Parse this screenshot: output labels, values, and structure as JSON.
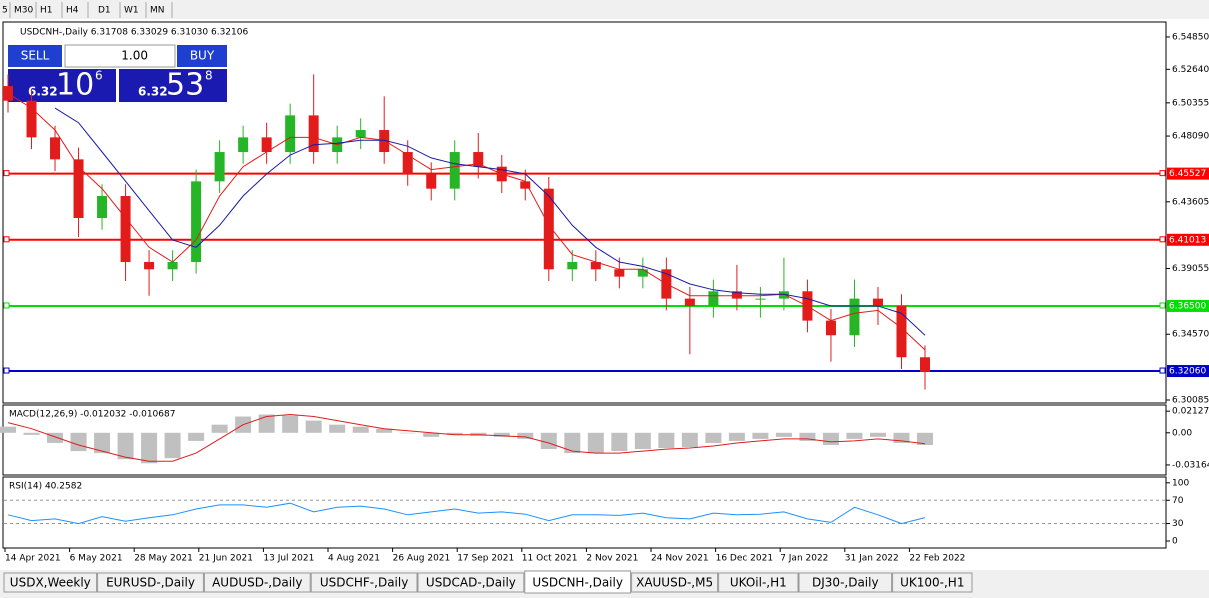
{
  "toolbar": {
    "timeframes": [
      "5",
      "M30",
      "H1",
      "H4",
      "D1",
      "W1",
      "MN"
    ]
  },
  "trade_panel": {
    "sell": "SELL",
    "buy": "BUY",
    "lot": "1.00",
    "sell_prefix": "6.32",
    "sell_big": "10",
    "sell_sup": "6",
    "buy_prefix": "6.32",
    "buy_big": "53",
    "buy_sup": "8"
  },
  "tabs": [
    "USDX,Weekly",
    "EURUSD-,Daily",
    "AUDUSD-,Daily",
    "USDCHF-,Daily",
    "USDCAD-,Daily",
    "USDCNH-,Daily",
    "XAUUSD-,M5",
    "UKOil-,H1",
    "DJ30-,Daily",
    "UK100-,H1"
  ],
  "active_tab": "USDCNH-,Daily",
  "chart_data": [
    {
      "type": "candlestick",
      "title": "USDCNH-,Daily  6.31708 6.33029 6.31030 6.32106",
      "up_color": "#26b526",
      "down_color": "#e21b1b",
      "open": [
        6.515,
        6.505,
        6.48,
        6.465,
        6.425,
        6.44,
        6.395,
        6.39,
        6.395,
        6.45,
        6.47,
        6.48,
        6.47,
        6.495,
        6.47,
        6.48,
        6.485,
        6.47,
        6.455,
        6.445,
        6.47,
        6.46,
        6.45,
        6.445,
        6.39,
        6.395,
        6.39,
        6.385,
        6.39,
        6.37,
        6.365,
        6.375,
        6.37,
        6.37,
        6.375,
        6.355,
        6.345,
        6.37,
        6.365,
        6.33
      ],
      "high": [
        6.523,
        6.513,
        6.488,
        6.473,
        6.448,
        6.448,
        6.403,
        6.403,
        6.458,
        6.478,
        6.488,
        6.49,
        6.503,
        6.523,
        6.488,
        6.493,
        6.508,
        6.478,
        6.463,
        6.478,
        6.483,
        6.468,
        6.458,
        6.453,
        6.403,
        6.403,
        6.398,
        6.398,
        6.398,
        6.378,
        6.383,
        6.393,
        6.378,
        6.398,
        6.383,
        6.363,
        6.383,
        6.378,
        6.373,
        6.338
      ],
      "low": [
        6.497,
        6.472,
        6.457,
        6.412,
        6.417,
        6.382,
        6.372,
        6.382,
        6.387,
        6.442,
        6.462,
        6.462,
        6.462,
        6.462,
        6.462,
        6.472,
        6.462,
        6.447,
        6.437,
        6.437,
        6.452,
        6.442,
        6.437,
        6.382,
        6.382,
        6.382,
        6.377,
        6.377,
        6.362,
        6.332,
        6.357,
        6.362,
        6.357,
        6.362,
        6.347,
        6.327,
        6.337,
        6.352,
        6.322,
        6.308
      ],
      "close": [
        6.505,
        6.48,
        6.465,
        6.425,
        6.44,
        6.395,
        6.39,
        6.395,
        6.45,
        6.47,
        6.48,
        6.47,
        6.495,
        6.47,
        6.48,
        6.485,
        6.47,
        6.455,
        6.445,
        6.47,
        6.46,
        6.45,
        6.445,
        6.39,
        6.395,
        6.39,
        6.385,
        6.39,
        6.37,
        6.365,
        6.375,
        6.37,
        6.37,
        6.375,
        6.355,
        6.345,
        6.37,
        6.365,
        6.33,
        6.32
      ],
      "series": [
        {
          "color": "#e21b1b",
          "values": [
            6.51,
            6.5,
            6.485,
            6.46,
            6.445,
            6.425,
            6.405,
            6.395,
            6.41,
            6.44,
            6.46,
            6.47,
            6.48,
            6.48,
            6.475,
            6.48,
            6.478,
            6.468,
            6.458,
            6.46,
            6.462,
            6.455,
            6.45,
            6.42,
            6.4,
            6.395,
            6.39,
            6.39,
            6.38,
            6.372,
            6.372,
            6.372,
            6.372,
            6.373,
            6.365,
            6.355,
            6.36,
            6.362,
            6.35,
            6.335
          ]
        },
        {
          "color": "#1a1aa6",
          "values": [
            null,
            null,
            6.5,
            6.49,
            6.47,
            6.45,
            6.43,
            6.41,
            6.405,
            6.42,
            6.44,
            6.455,
            6.468,
            6.475,
            6.476,
            6.478,
            6.478,
            6.474,
            6.466,
            6.462,
            6.46,
            6.458,
            6.455,
            6.44,
            6.42,
            6.405,
            6.395,
            6.392,
            6.387,
            6.38,
            6.376,
            6.374,
            6.373,
            6.373,
            6.37,
            6.365,
            6.365,
            6.365,
            6.36,
            6.345
          ]
        }
      ],
      "levels": [
        {
          "value": 6.45527,
          "color": "#ff0000"
        },
        {
          "value": 6.41013,
          "color": "#ff0000"
        },
        {
          "value": 6.365,
          "label": "6.36500",
          "color": "#00e000"
        },
        {
          "value": 6.3206,
          "label": "6.32060",
          "color": "#0000c8"
        }
      ],
      "ylim": [
        6.2988,
        6.5587
      ],
      "yticks": [
        6.30085,
        {
          "value": 6.3457,
          "label": "6.34570"
        },
        6.39055,
        6.43605,
        {
          "value": 6.4809,
          "label": "6.48090"
        },
        6.50355,
        {
          "value": 6.5264,
          "label": "6.52640"
        },
        {
          "value": 6.5485,
          "label": "6.54850"
        }
      ],
      "xtick_labels": [
        "14 Apr 2021",
        "6 May 2021",
        "28 May 2021",
        "21 Jun 2021",
        "13 Jul 2021",
        "4 Aug 2021",
        "26 Aug 2021",
        "17 Sep 2021",
        "11 Oct 2021",
        "2 Nov 2021",
        "24 Nov 2021",
        "16 Dec 2021",
        "7 Jan 2022",
        "31 Jan 2022",
        "22 Feb 2022"
      ]
    },
    {
      "type": "macd",
      "title": "MACD(12,26,9) -0.012032 -0.010687",
      "color": "#c0c0c0",
      "values": [
        0.006,
        -0.002,
        -0.01,
        -0.018,
        -0.02,
        -0.026,
        -0.03,
        -0.025,
        -0.008,
        0.008,
        0.016,
        0.018,
        0.017,
        0.012,
        0.008,
        0.006,
        0.004,
        0.0,
        -0.004,
        -0.002,
        -0.003,
        -0.004,
        -0.006,
        -0.016,
        -0.02,
        -0.02,
        -0.018,
        -0.016,
        -0.015,
        -0.014,
        -0.01,
        -0.008,
        -0.006,
        -0.004,
        -0.008,
        -0.012,
        -0.006,
        -0.004,
        -0.01,
        -0.012032
      ],
      "series": [
        {
          "color": "#e21b1b",
          "values": [
            0.01,
            0.004,
            -0.004,
            -0.012,
            -0.018,
            -0.024,
            -0.028,
            -0.028,
            -0.02,
            -0.006,
            0.008,
            0.016,
            0.018,
            0.016,
            0.012,
            0.008,
            0.004,
            0.002,
            0.0,
            -0.002,
            -0.002,
            -0.003,
            -0.004,
            -0.01,
            -0.018,
            -0.02,
            -0.02,
            -0.018,
            -0.016,
            -0.015,
            -0.013,
            -0.01,
            -0.008,
            -0.006,
            -0.006,
            -0.009,
            -0.008,
            -0.006,
            -0.008,
            -0.010687
          ]
        }
      ],
      "ylim": [
        -0.04154,
        0.02736
      ],
      "yticks": [
        0.021276,
        {
          "value": 0,
          "label": "0.00"
        },
        -0.031644
      ]
    },
    {
      "type": "rsi",
      "title": "RSI(14) 40.2582",
      "series": [
        {
          "color": "#1e90ff",
          "values": [
            45,
            35,
            38,
            30,
            42,
            34,
            40,
            45,
            55,
            62,
            62,
            58,
            65,
            50,
            58,
            60,
            55,
            45,
            50,
            55,
            48,
            50,
            46,
            35,
            45,
            45,
            44,
            48,
            40,
            38,
            48,
            45,
            46,
            50,
            38,
            32,
            58,
            45,
            30,
            40.2582
          ]
        }
      ],
      "levels": [
        70,
        30
      ],
      "ylim": [
        -12,
        110
      ],
      "yticks": [
        0,
        30,
        70,
        100
      ]
    }
  ]
}
